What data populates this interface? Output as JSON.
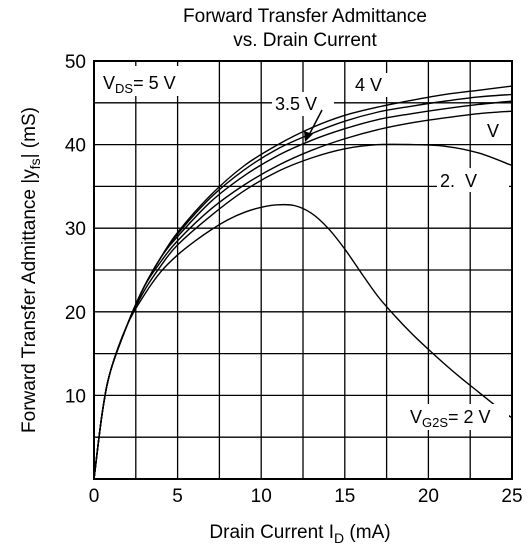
{
  "chart_data": {
    "type": "line",
    "title": [
      "Forward Transfer Admittance",
      "vs. Drain Current"
    ],
    "xlabel": "Drain Current   I",
    "xlabel_sub": "D",
    "xlabel_unit": "(mA)",
    "ylabel": "Forward Transfer Admittance |y",
    "ylabel_sub": "fs",
    "ylabel_unit": "| (mS)",
    "xlim": [
      0,
      25
    ],
    "ylim": [
      0,
      50
    ],
    "x_ticks": [
      0,
      5,
      10,
      15,
      20,
      25
    ],
    "y_ticks": [
      10,
      20,
      30,
      40,
      50
    ],
    "y_tick_labels": [
      "10",
      "20",
      "30",
      "40",
      "50"
    ],
    "x_tick_labels": [
      "0",
      "5",
      "10",
      "15",
      "20",
      "25"
    ],
    "grid": true,
    "condition_label": {
      "text_main": "V",
      "text_sub": "DS",
      "text_rest": "= 5 V"
    },
    "series": [
      {
        "name": "4 V",
        "x": [
          0,
          0.5,
          1,
          2,
          3,
          4,
          5,
          7,
          9,
          11,
          13,
          15,
          17,
          19,
          21,
          23,
          25
        ],
        "y": [
          0,
          8,
          13,
          18.5,
          23,
          26.5,
          29.5,
          34,
          37.5,
          40,
          42,
          43.5,
          44.5,
          45.3,
          46,
          46.5,
          47
        ]
      },
      {
        "name": "",
        "x": [
          0,
          0.5,
          1,
          2,
          3,
          4,
          5,
          7,
          9,
          11,
          13,
          15,
          17,
          19,
          21,
          23,
          25
        ],
        "y": [
          0,
          8,
          13,
          18.5,
          23,
          26.5,
          29.3,
          33.7,
          37,
          39.5,
          41.3,
          42.8,
          43.9,
          44.6,
          45.2,
          45.7,
          46
        ]
      },
      {
        "name": "3.5 V",
        "x": [
          0,
          0.5,
          1,
          2,
          3,
          4,
          5,
          7,
          9,
          11,
          13,
          15,
          17,
          19,
          21,
          23,
          25
        ],
        "y": [
          0,
          8,
          13,
          18.5,
          23,
          26.5,
          29,
          33.2,
          36.3,
          38.7,
          40.5,
          41.9,
          43,
          43.7,
          44.3,
          44.8,
          45.2
        ]
      },
      {
        "name": "V",
        "x": [
          0,
          0.5,
          1,
          2,
          3,
          4,
          5,
          7,
          9,
          11,
          13,
          15,
          17,
          19,
          21,
          23,
          25
        ],
        "y": [
          0,
          8,
          13,
          18.5,
          23,
          26,
          28.5,
          32.3,
          35.2,
          37.5,
          39.3,
          40.7,
          41.8,
          42.6,
          43.2,
          43.7,
          44
        ]
      },
      {
        "name": "2.  V",
        "x": [
          0,
          0.5,
          1,
          2,
          3,
          4,
          5,
          7,
          9,
          11,
          13,
          15,
          17,
          19,
          21,
          23,
          25
        ],
        "y": [
          0,
          8,
          13,
          18.5,
          22.5,
          25.5,
          28,
          31.5,
          34.5,
          36.8,
          38.4,
          39.5,
          40,
          40,
          39.8,
          39,
          37.5
        ]
      },
      {
        "name": "V",
        "name_sub": "G2S",
        "name_rest": "= 2 V",
        "x": [
          0,
          0.5,
          1,
          2,
          3,
          4,
          5,
          6,
          7,
          8,
          9,
          10,
          11,
          12,
          13,
          14,
          15,
          16,
          17,
          18,
          19,
          20,
          21,
          22,
          23,
          24,
          25
        ],
        "y": [
          0,
          8,
          13,
          18.5,
          22,
          24.8,
          26.8,
          28.4,
          29.8,
          31,
          31.9,
          32.5,
          32.8,
          32.7,
          31.8,
          30,
          27.5,
          24.6,
          21.8,
          19.5,
          17.4,
          15.5,
          13.7,
          12,
          10.4,
          8.8,
          7.3
        ]
      }
    ]
  }
}
